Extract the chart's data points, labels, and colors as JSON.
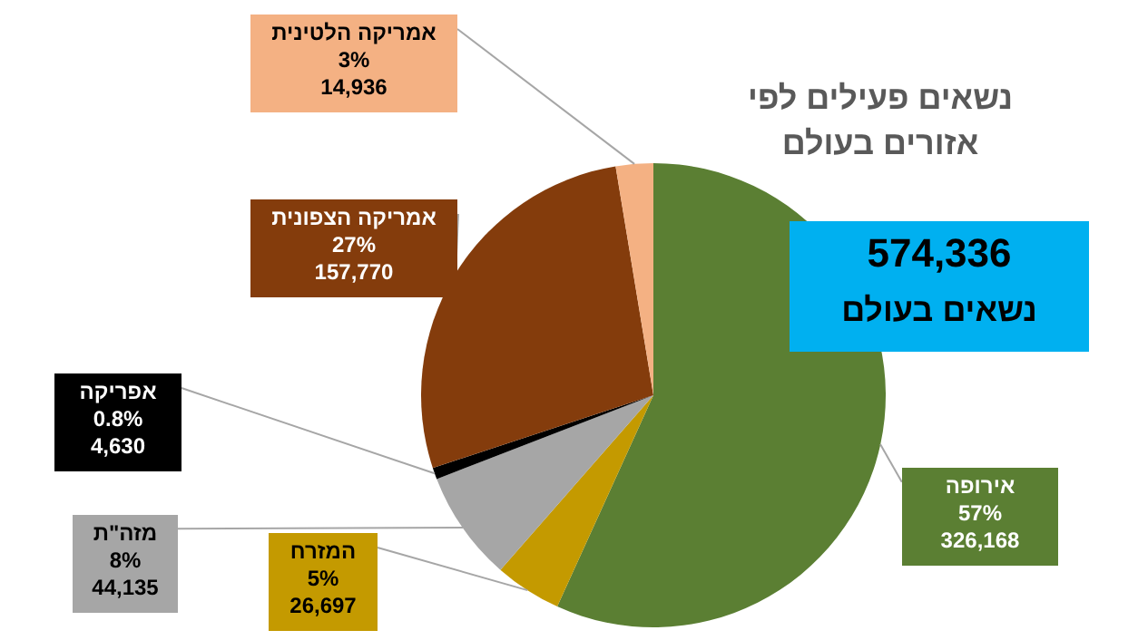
{
  "chart_data": {
    "type": "pie",
    "title": "נשאים פעילים לפי אזורים בעולם",
    "categories": [
      "אירופה",
      "המזרח",
      "מזה\"ת",
      "אפריקה",
      "אמריקה הצפונית",
      "אמריקה הלטינית"
    ],
    "values": [
      326168,
      26697,
      44135,
      4630,
      157770,
      14936
    ],
    "colors": [
      "#5b7f33",
      "#c49a00",
      "#a6a6a6",
      "#000000",
      "#843c0c",
      "#f4b183"
    ],
    "value_labels": [
      "57%\n326,168",
      "5%\n26,697",
      "8%\n44,135",
      "0.8%\n4,630",
      "27%\n157,770",
      "3%\n14,936"
    ],
    "annotations": [
      "574,336",
      "נשאים בעולם"
    ]
  }
}
